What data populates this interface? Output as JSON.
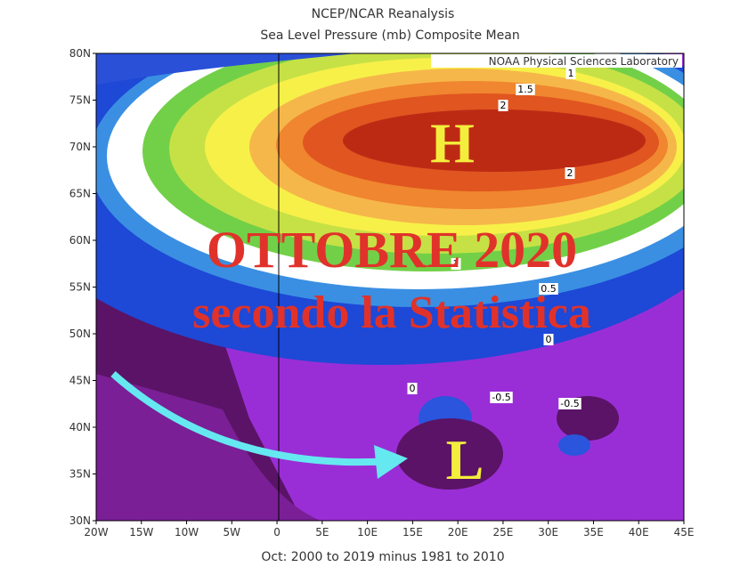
{
  "header": {
    "title": "NCEP/NCAR Reanalysis",
    "subtitle": "Sea Level Pressure (mb) Composite Mean"
  },
  "credit": "NOAA Physical Sciences Laboratory",
  "map": {
    "lat_labels": [
      "80N",
      "75N",
      "70N",
      "65N",
      "60N",
      "55N",
      "50N",
      "45N",
      "40N",
      "35N",
      "30N"
    ],
    "lon_labels": [
      "20W",
      "15W",
      "10W",
      "5W",
      "0",
      "5E",
      "10E",
      "15E",
      "20E",
      "25E",
      "30E",
      "35E",
      "40E",
      "45E"
    ],
    "contour_labels": [
      "1",
      "1.5",
      "2",
      "2",
      "1",
      "0.5",
      "0",
      "0",
      "-0.5",
      "-0.5"
    ],
    "caption": "Oct: 2000 to 2019 minus 1981 to 2010"
  },
  "overlay": {
    "high": "H",
    "headline": "OTTOBRE 2020",
    "subline": "secondo la Statistica",
    "low": "L"
  }
}
